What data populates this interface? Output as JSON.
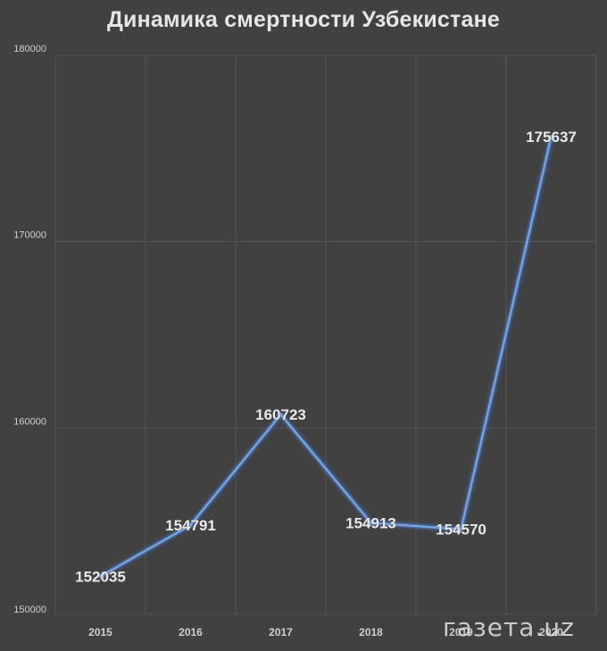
{
  "chart_data": {
    "type": "line",
    "title": "Динамика смертности Узбекистане",
    "xlabel": "",
    "ylabel": "",
    "categories": [
      "2015",
      "2016",
      "2017",
      "2018",
      "2019",
      "2020"
    ],
    "series": [
      {
        "values": [
          152035,
          154791,
          160723,
          154913,
          154570,
          175637
        ]
      }
    ],
    "data_labels": [
      "152035",
      "154791",
      "160723",
      "154913",
      "154570",
      "175637"
    ],
    "yticks": [
      "150000",
      "160000",
      "170000",
      "180000"
    ],
    "ylim": [
      150000,
      180000
    ],
    "grid": true,
    "legend": "none",
    "colors": {
      "background": "#414141",
      "line": "#7fa8e0",
      "glow": "#4a7fd6",
      "grid": "#555555",
      "text": "#e6e6e6",
      "tick": "#cfcfcf"
    }
  },
  "watermark": {
    "text": "газета.uz"
  }
}
